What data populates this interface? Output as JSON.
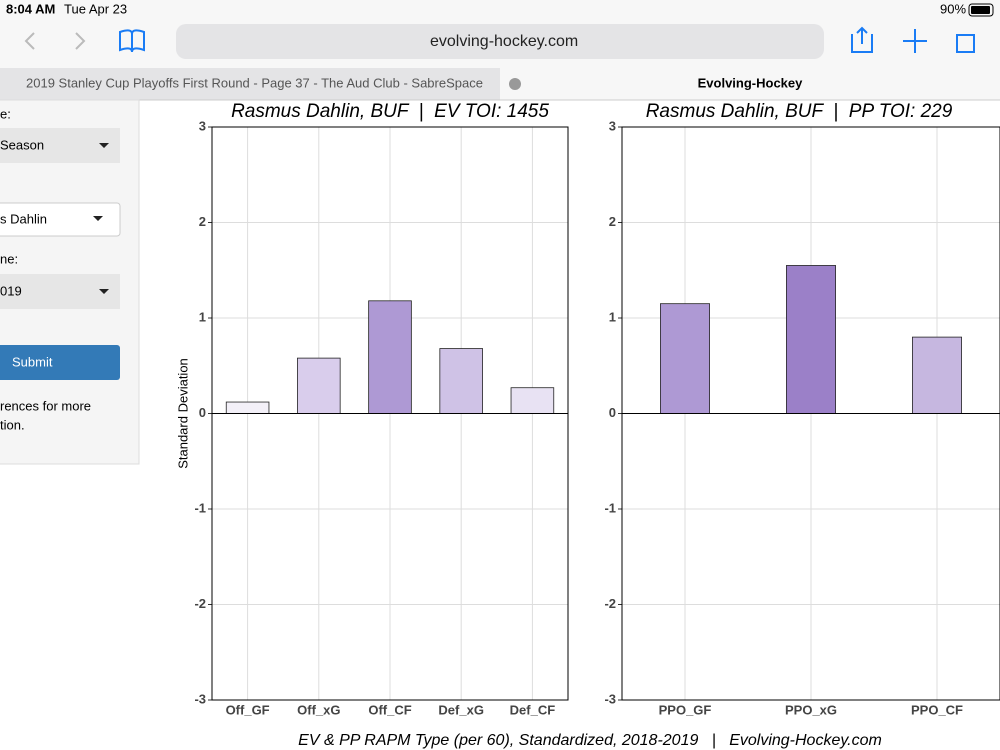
{
  "status_bar": {
    "time": "8:04 AM",
    "date": "Tue Apr 23",
    "battery": "90%"
  },
  "browser": {
    "url": "evolving-hockey.com",
    "tabs": [
      "2019 Stanley Cup Playoffs First Round - Page 37 - The Aud Club - SabreSpace",
      "Evolving-Hockey"
    ]
  },
  "sidebar": {
    "label1": "e:",
    "select1": "Season",
    "select2": "s Dahlin",
    "label3": "ne:",
    "select3": "019",
    "button": "Submit",
    "note": [
      "rences for more",
      "tion."
    ]
  },
  "chart_data": [
    {
      "type": "bar",
      "title": "Rasmus Dahlin, BUF  |  EV TOI: 1455",
      "y_label": "Standard Deviation",
      "categories": [
        "Off_GF",
        "Off_xG",
        "Off_CF",
        "Def_xG",
        "Def_CF"
      ],
      "values": [
        0.12,
        0.58,
        1.18,
        0.68,
        0.27
      ],
      "colors": [
        "#f3f0f8",
        "#d9cdec",
        "#ae99d4",
        "#cfc2e6",
        "#e8e2f3"
      ],
      "ylim": [
        -3,
        3
      ],
      "yticks": [
        -3,
        -2,
        -1,
        0,
        1,
        2,
        3
      ],
      "grid": true
    },
    {
      "type": "bar",
      "title": "Rasmus Dahlin, BUF  |  PP TOI: 229",
      "categories": [
        "PPO_GF",
        "PPO_xG",
        "PPO_CF"
      ],
      "values": [
        1.15,
        1.55,
        0.8
      ],
      "colors": [
        "#ae99d4",
        "#9b80c8",
        "#c6b7e0"
      ],
      "ylim": [
        -3,
        3
      ],
      "yticks": [
        -3,
        -2,
        -1,
        0,
        1,
        2,
        3
      ],
      "grid": true
    }
  ],
  "caption": "EV & PP RAPM Type (per 60), Standardized, 2018-2019   |   Evolving-Hockey.com"
}
